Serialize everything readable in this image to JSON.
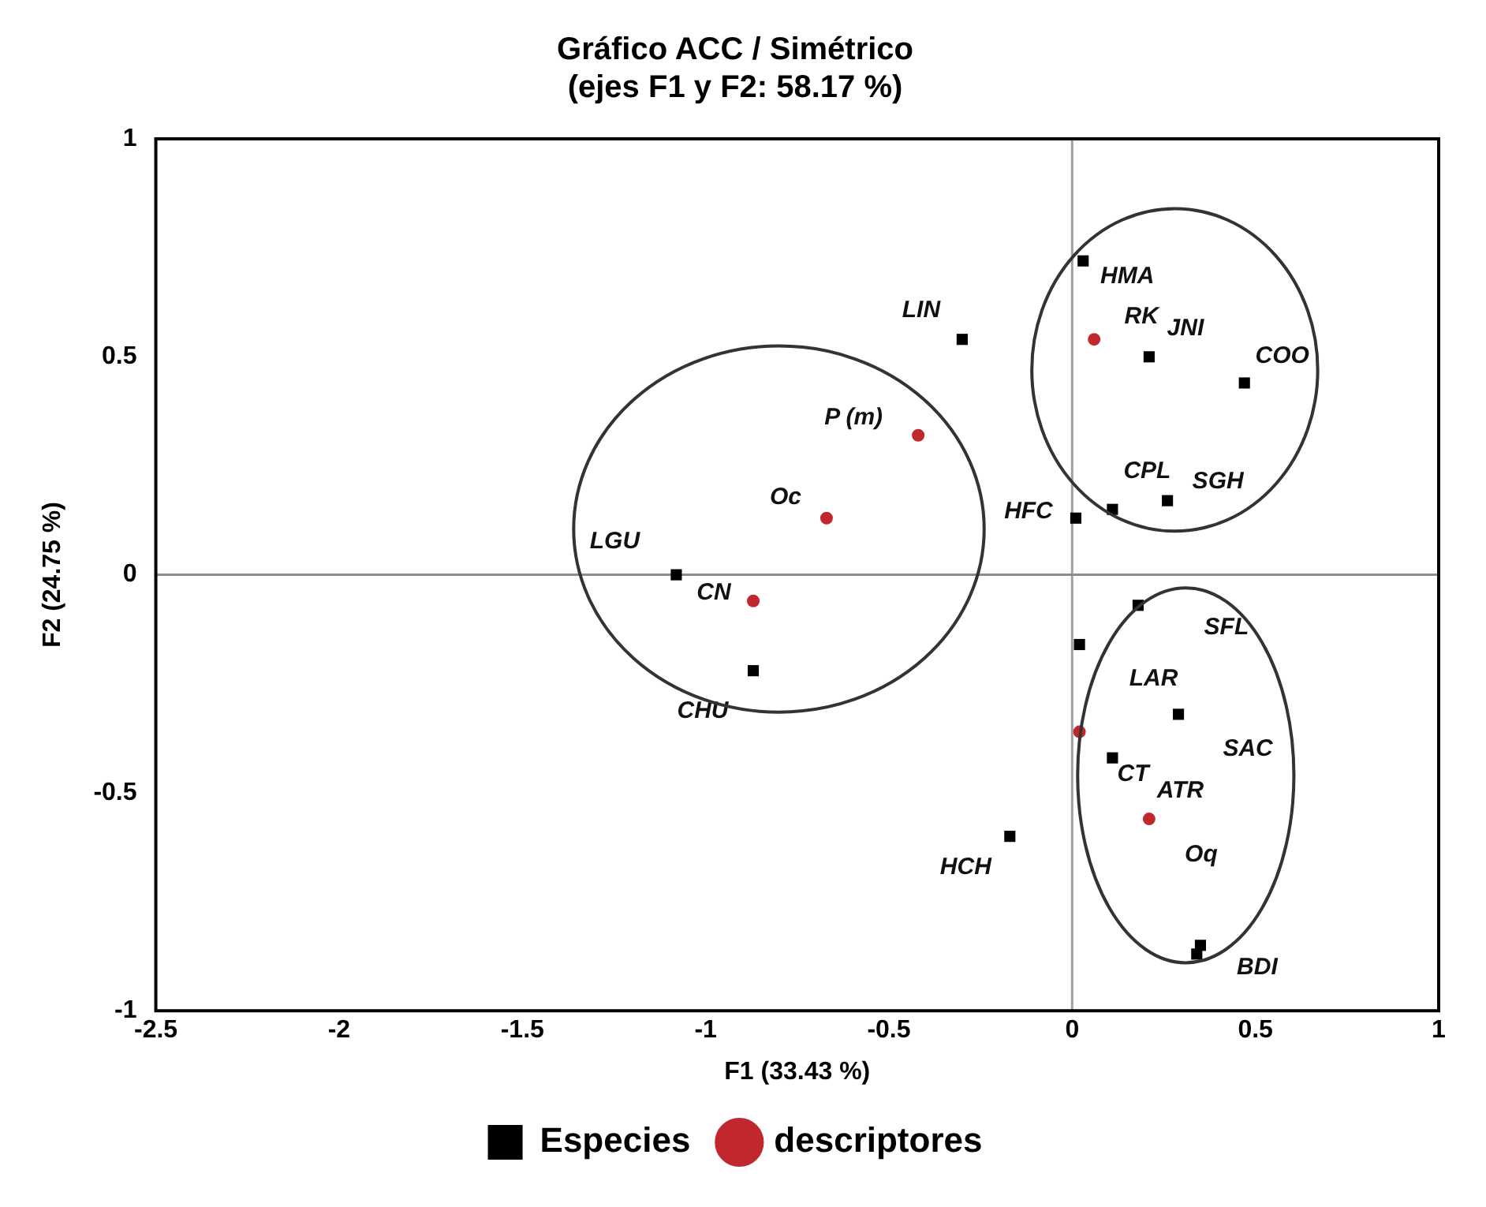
{
  "chart_data": {
    "type": "scatter",
    "title": "Gráfico ACC / Simétrico\n(ejes F1 y F2: 58.17 %)",
    "xlabel": "F1 (33.43 %)",
    "ylabel": "F2 (24.75 %)",
    "xlim": [
      -2.5,
      1
    ],
    "xticks": [
      -2.5,
      -2,
      -1.5,
      -1,
      -0.5,
      0,
      0.5,
      1
    ],
    "ylim": [
      -1,
      1
    ],
    "yticks": [
      -1,
      -0.5,
      0,
      0.5,
      1
    ],
    "grid": false,
    "legend": "bottom",
    "ref_lines": [
      {
        "axis": "x",
        "value": 0,
        "color": "#a0a0a0"
      },
      {
        "axis": "y",
        "value": 0,
        "color": "#8c8c8c"
      }
    ],
    "series": [
      {
        "name": "Especies",
        "color": "#000000",
        "marker": "square",
        "x": [
          -0.3,
          0.03,
          0.21,
          0.47,
          0.01,
          0.11,
          0.26,
          -1.08,
          -0.87,
          0.02,
          0.18,
          0.29,
          0.11,
          -0.17,
          0.34,
          0.35
        ],
        "values": [
          0.54,
          0.72,
          0.5,
          0.44,
          0.13,
          0.15,
          0.17,
          0.0,
          -0.22,
          -0.16,
          -0.07,
          -0.32,
          -0.42,
          -0.6,
          -0.87,
          -0.85
        ]
      },
      {
        "name": "descriptores",
        "color": "#c0282d",
        "marker": "circle",
        "x": [
          0.06,
          -0.42,
          -0.67,
          -0.87,
          0.02,
          0.21
        ],
        "values": [
          0.54,
          0.32,
          0.13,
          -0.06,
          -0.36,
          -0.56
        ]
      }
    ],
    "annotations": [
      {
        "text": "LIN",
        "x": -0.3,
        "y": 0.54
      },
      {
        "text": "HMA",
        "x": 0.03,
        "y": 0.72
      },
      {
        "text": "RK",
        "x": 0.06,
        "y": 0.54
      },
      {
        "text": "JNI",
        "x": 0.21,
        "y": 0.5
      },
      {
        "text": "COO",
        "x": 0.47,
        "y": 0.44
      },
      {
        "text": "HFC",
        "x": 0.01,
        "y": 0.13
      },
      {
        "text": "CPL",
        "x": 0.11,
        "y": 0.15
      },
      {
        "text": "SGH",
        "x": 0.26,
        "y": 0.17
      },
      {
        "text": "P (m)",
        "x": -0.42,
        "y": 0.32
      },
      {
        "text": "Oc",
        "x": -0.67,
        "y": 0.13
      },
      {
        "text": "LGU",
        "x": -1.08,
        "y": 0.0
      },
      {
        "text": "CN",
        "x": -0.87,
        "y": -0.06
      },
      {
        "text": "CHU",
        "x": -0.87,
        "y": -0.22
      },
      {
        "text": "SFL",
        "x": 0.18,
        "y": -0.07
      },
      {
        "text": "LAR",
        "x": 0.02,
        "y": -0.16
      },
      {
        "text": "SAC",
        "x": 0.29,
        "y": -0.32
      },
      {
        "text": "CT",
        "x": 0.02,
        "y": -0.36
      },
      {
        "text": "ATR",
        "x": 0.11,
        "y": -0.42
      },
      {
        "text": "Oq",
        "x": 0.21,
        "y": -0.56
      },
      {
        "text": "HCH",
        "x": -0.17,
        "y": -0.6
      },
      {
        "text": "BDI",
        "x": 0.35,
        "y": -0.85
      }
    ]
  }
}
